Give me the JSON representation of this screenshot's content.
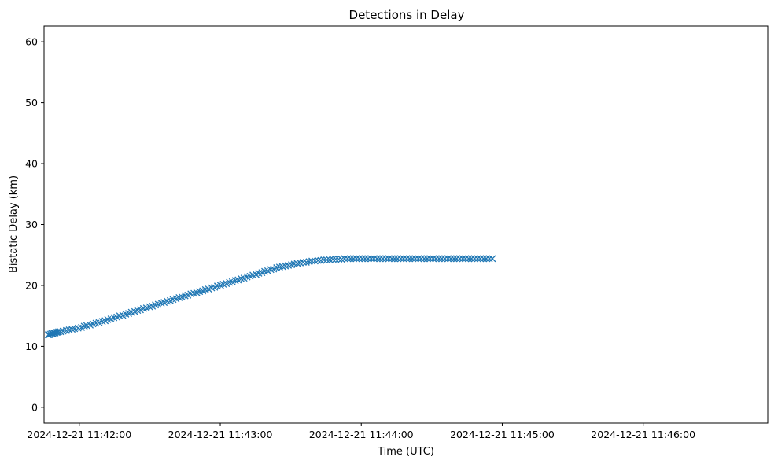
{
  "chart_data": {
    "type": "scatter",
    "title": "Detections in Delay",
    "xlabel": "Time (UTC)",
    "ylabel": "Bistatic Delay (km)",
    "marker": "x",
    "color": "#1f77b4",
    "grid": false,
    "legend": "none",
    "xlim": [
      "2024-12-21 11:41:45",
      "2024-12-21 11:46:53"
    ],
    "ylim": [
      -2.6,
      62.6
    ],
    "x_ticks": [
      "2024-12-21 11:42:00",
      "2024-12-21 11:43:00",
      "2024-12-21 11:44:00",
      "2024-12-21 11:45:00",
      "2024-12-21 11:46:00"
    ],
    "y_ticks": [
      0,
      10,
      20,
      30,
      40,
      50,
      60
    ],
    "series": [
      {
        "name": "",
        "note_x_format": "seconds after 11:41:45 in the original time axis",
        "x": [
          1.8,
          2.2,
          2.8,
          3.3,
          3.7,
          4.2,
          4.7,
          5.3,
          5.8,
          6.2,
          7.0,
          8.1,
          9.5,
          10.7,
          11.9,
          13.0,
          14.5,
          15.9,
          17.1,
          18.2,
          19.6,
          20.8,
          22.1,
          23.4,
          24.8,
          26.0,
          27.1,
          28.5,
          29.7,
          31.0,
          32.2,
          33.5,
          34.8,
          36.0,
          37.2,
          38.6,
          39.8,
          41.0,
          42.3,
          43.6,
          44.9,
          46.1,
          47.4,
          48.6,
          49.9,
          51.1,
          52.4,
          53.7,
          54.9,
          56.2,
          57.5,
          58.7,
          60.0,
          61.2,
          62.5,
          63.8,
          65.0,
          66.2,
          67.5,
          68.7,
          70.0,
          71.3,
          72.6,
          73.8,
          75.1,
          76.3,
          77.6,
          78.9,
          80.1,
          81.4,
          82.6,
          83.9,
          85.1,
          86.4,
          87.7,
          88.9,
          90.2,
          91.4,
          92.7,
          93.9,
          95.2,
          96.5,
          97.7,
          99.0,
          100.2,
          101.5,
          102.7,
          104.0,
          105.3,
          106.5,
          107.8,
          109.0,
          110.3,
          111.6,
          112.8,
          114.0,
          115.3,
          116.6,
          117.8,
          119.1,
          120.3,
          121.6,
          122.9,
          124.1,
          125.4,
          126.6,
          127.9,
          129.2,
          130.4,
          131.7,
          132.9,
          134.1,
          135.4,
          136.6,
          137.9,
          139.2,
          140.4,
          141.7,
          142.9,
          144.2,
          145.5,
          146.7,
          148.0,
          149.2,
          150.5,
          151.8,
          153.0,
          154.3,
          155.5,
          156.8,
          158.0,
          159.3,
          160.5,
          161.8,
          163.1,
          164.3,
          165.6,
          166.8,
          168.1,
          169.3,
          170.6,
          171.9,
          173.1,
          174.4,
          175.6,
          176.9,
          178.2,
          179.4,
          180.7,
          181.9,
          183.2,
          184.5,
          185.7,
          187.0,
          188.2,
          189.5,
          190.8
        ],
        "y": [
          11.9,
          11.9,
          12.0,
          12.1,
          12.1,
          12.2,
          12.2,
          12.3,
          12.3,
          12.4,
          12.4,
          12.5,
          12.6,
          12.7,
          12.8,
          12.9,
          13.0,
          13.1,
          13.3,
          13.4,
          13.5,
          13.7,
          13.8,
          13.9,
          14.1,
          14.2,
          14.4,
          14.5,
          14.7,
          14.8,
          15.0,
          15.1,
          15.3,
          15.4,
          15.6,
          15.7,
          15.9,
          16.0,
          16.2,
          16.3,
          16.5,
          16.6,
          16.8,
          16.9,
          17.1,
          17.2,
          17.4,
          17.5,
          17.7,
          17.8,
          18.0,
          18.1,
          18.3,
          18.4,
          18.6,
          18.7,
          18.8,
          19.0,
          19.1,
          19.3,
          19.4,
          19.6,
          19.7,
          19.9,
          20.0,
          20.2,
          20.3,
          20.5,
          20.6,
          20.8,
          20.9,
          21.1,
          21.2,
          21.4,
          21.5,
          21.7,
          21.8,
          22.0,
          22.1,
          22.3,
          22.4,
          22.6,
          22.7,
          22.9,
          23.0,
          23.1,
          23.2,
          23.3,
          23.4,
          23.5,
          23.6,
          23.7,
          23.8,
          23.8,
          23.9,
          24.0,
          24.0,
          24.1,
          24.1,
          24.2,
          24.2,
          24.2,
          24.3,
          24.3,
          24.3,
          24.3,
          24.4,
          24.4,
          24.4,
          24.4,
          24.4,
          24.4,
          24.4,
          24.4,
          24.4,
          24.4,
          24.4,
          24.4,
          24.4,
          24.4,
          24.4,
          24.4,
          24.4,
          24.4,
          24.4,
          24.4,
          24.4,
          24.4,
          24.4,
          24.4,
          24.4,
          24.4,
          24.4,
          24.4,
          24.4,
          24.4,
          24.4,
          24.4,
          24.4,
          24.4,
          24.4,
          24.4,
          24.4,
          24.4,
          24.4,
          24.4,
          24.4,
          24.4,
          24.4,
          24.4,
          24.4,
          24.4,
          24.4,
          24.4,
          24.4,
          24.4,
          24.4
        ]
      }
    ]
  }
}
